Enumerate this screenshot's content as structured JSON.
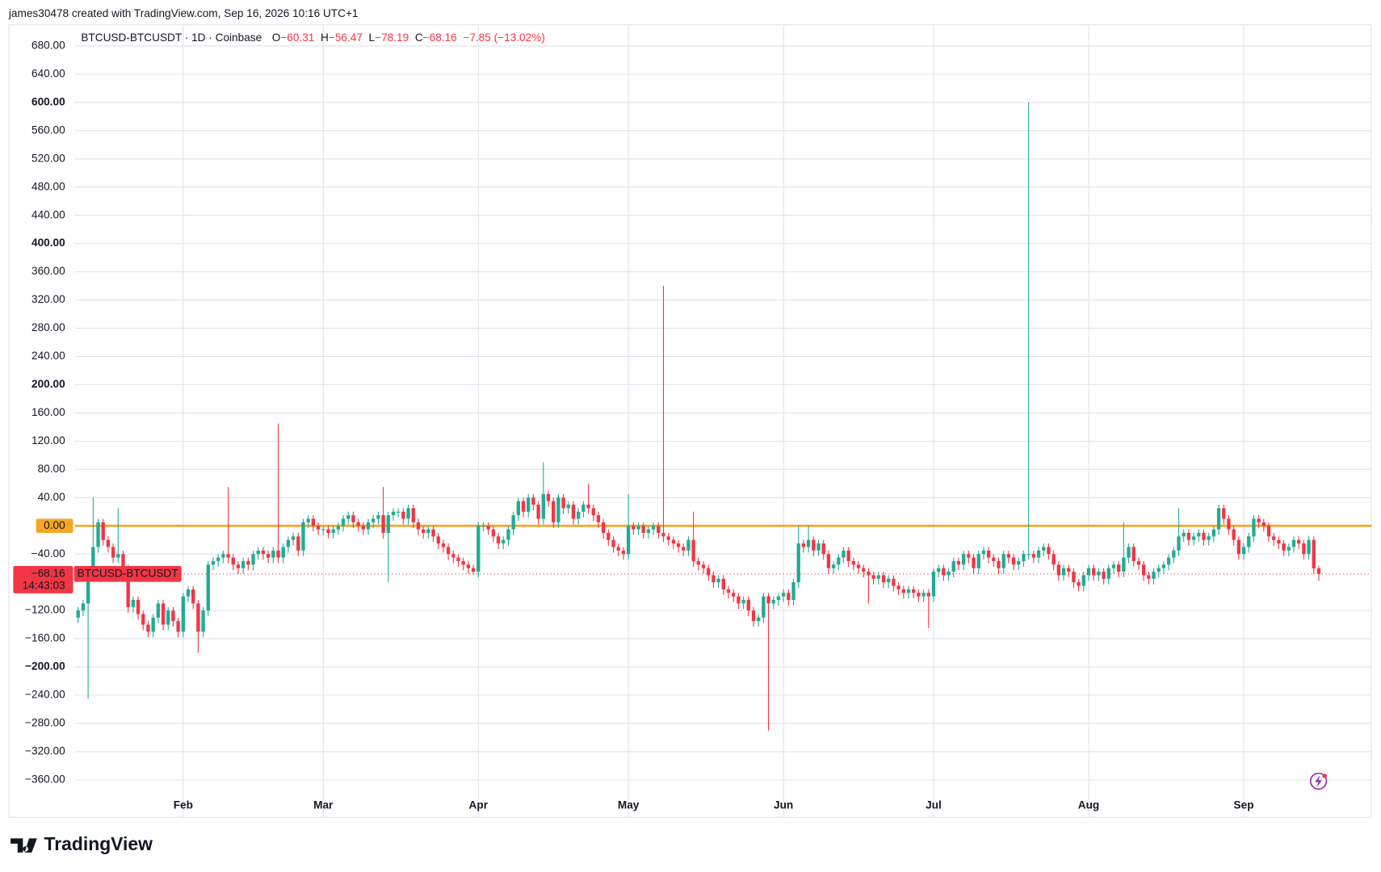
{
  "attribution": "james30478 created with TradingView.com, Sep 16, 2026 10:16 UTC+1",
  "brand": "TradingView",
  "chart_data": {
    "type": "candlestick",
    "title": "BTCUSD-BTCUSDT · 1D · Coinbase",
    "legend_items": [
      {
        "key": "O",
        "value": "−60.31"
      },
      {
        "key": "H",
        "value": "−56.47"
      },
      {
        "key": "L",
        "value": "−78.19"
      },
      {
        "key": "C",
        "value": "−68.16"
      }
    ],
    "change": "−7.85 (−13.02%)",
    "up_color": "#22ab94",
    "down_color": "#f23645",
    "grid": true,
    "xlim": [
      -0.65,
      258.5
    ],
    "xticks": [
      {
        "value": 21,
        "label": "Feb"
      },
      {
        "value": 49,
        "label": "Mar"
      },
      {
        "value": 80,
        "label": "Apr"
      },
      {
        "value": 110,
        "label": "May"
      },
      {
        "value": 141,
        "label": "Jun"
      },
      {
        "value": 171,
        "label": "Jul"
      },
      {
        "value": 202,
        "label": "Aug"
      },
      {
        "value": 233,
        "label": "Sep"
      }
    ],
    "ylim": [
      -413,
      710
    ],
    "yticks": [
      {
        "value": 680,
        "label": "680.00"
      },
      {
        "value": 640,
        "label": "640.00"
      },
      {
        "value": 600,
        "label": "600.00"
      },
      {
        "value": 560,
        "label": "560.00"
      },
      {
        "value": 520,
        "label": "520.00"
      },
      {
        "value": 480,
        "label": "480.00"
      },
      {
        "value": 440,
        "label": "440.00"
      },
      {
        "value": 400,
        "label": "400.00"
      },
      {
        "value": 360,
        "label": "360.00"
      },
      {
        "value": 320,
        "label": "320.00"
      },
      {
        "value": 280,
        "label": "280.00"
      },
      {
        "value": 240,
        "label": "240.00"
      },
      {
        "value": 200,
        "label": "200.00"
      },
      {
        "value": 160,
        "label": "160.00"
      },
      {
        "value": 120,
        "label": "120.00"
      },
      {
        "value": 80,
        "label": "80.00"
      },
      {
        "value": 40,
        "label": "40.00"
      },
      {
        "value": -40,
        "label": "−40.00"
      },
      {
        "value": -120,
        "label": "−120.00"
      },
      {
        "value": -160,
        "label": "−160.00"
      },
      {
        "value": -200,
        "label": "−200.00"
      },
      {
        "value": -240,
        "label": "−240.00"
      },
      {
        "value": -280,
        "label": "−280.00"
      },
      {
        "value": -320,
        "label": "−320.00"
      },
      {
        "value": -360,
        "label": "−360.00"
      }
    ],
    "hline": {
      "value": 0,
      "label": "0.00",
      "color": "#f5a623"
    },
    "last_price": {
      "value": -68.16,
      "label": "−68.16",
      "name": "BTCUSD-BTCUSDT",
      "countdown": "14:43:03"
    },
    "open": [
      -130,
      -120,
      -110,
      -70,
      -30,
      5,
      -20,
      -30,
      -45,
      -40,
      -60,
      -115,
      -105,
      -125,
      -140,
      -150,
      -130,
      -110,
      -140,
      -120,
      -135,
      -150,
      -100,
      -90,
      -110,
      -150,
      -120,
      -55,
      -50,
      -45,
      -40,
      -45,
      -55,
      -60,
      -50,
      -55,
      -40,
      -35,
      -40,
      -45,
      -35,
      -45,
      -30,
      -20,
      -15,
      -35,
      5,
      10,
      0,
      -5,
      -5,
      -10,
      -5,
      0,
      10,
      15,
      5,
      0,
      -5,
      5,
      10,
      15,
      -10,
      15,
      20,
      20,
      10,
      25,
      5,
      -5,
      -10,
      -5,
      -15,
      -25,
      -30,
      -40,
      -45,
      -50,
      -55,
      -60,
      -65,
      0,
      0,
      -5,
      -15,
      -25,
      -20,
      -5,
      15,
      35,
      20,
      40,
      30,
      10,
      45,
      35,
      5,
      40,
      25,
      30,
      10,
      20,
      30,
      25,
      15,
      5,
      -10,
      -20,
      -30,
      -35,
      -40,
      0,
      -5,
      0,
      -10,
      -5,
      0,
      -10,
      -15,
      -20,
      -25,
      -30,
      -35,
      -20,
      -50,
      -55,
      -60,
      -70,
      -80,
      -75,
      -90,
      -95,
      -100,
      -110,
      -105,
      -120,
      -135,
      -130,
      -100,
      -110,
      -105,
      -100,
      -95,
      -105,
      -80,
      -25,
      -30,
      -20,
      -35,
      -25,
      -40,
      -60,
      -55,
      -45,
      -35,
      -50,
      -55,
      -60,
      -65,
      -70,
      -75,
      -70,
      -80,
      -75,
      -85,
      -90,
      -95,
      -90,
      -95,
      -100,
      -95,
      -100,
      -65,
      -60,
      -70,
      -65,
      -50,
      -55,
      -40,
      -45,
      -60,
      -40,
      -35,
      -45,
      -50,
      -60,
      -40,
      -45,
      -55,
      -50,
      -40,
      -40,
      -45,
      -35,
      -30,
      -40,
      -55,
      -70,
      -60,
      -65,
      -80,
      -85,
      -70,
      -60,
      -70,
      -65,
      -75,
      -60,
      -55,
      -65,
      -45,
      -30,
      -50,
      -55,
      -70,
      -75,
      -65,
      -60,
      -55,
      -45,
      -35,
      -15,
      -10,
      -20,
      -15,
      -10,
      -20,
      -15,
      -5,
      25,
      10,
      -5,
      -20,
      -40,
      -30,
      -15,
      10,
      5,
      0,
      -15,
      -20,
      -25,
      -35,
      -30,
      -20,
      -25,
      -40,
      -20,
      -60.31
    ],
    "high": [
      -115,
      -105,
      -65,
      40,
      10,
      10,
      -15,
      -25,
      25,
      -35,
      -55,
      -100,
      -100,
      -120,
      -135,
      -125,
      -105,
      -105,
      -115,
      -115,
      -130,
      -95,
      -85,
      -85,
      -105,
      -115,
      -50,
      -45,
      -40,
      -35,
      55,
      -40,
      -50,
      -45,
      -45,
      -35,
      -30,
      -30,
      -35,
      -30,
      145,
      -25,
      -15,
      -10,
      -10,
      10,
      15,
      15,
      5,
      0,
      0,
      0,
      5,
      15,
      20,
      20,
      10,
      5,
      10,
      15,
      20,
      55,
      20,
      25,
      25,
      25,
      30,
      30,
      10,
      0,
      0,
      0,
      -10,
      -20,
      -25,
      -35,
      -40,
      -45,
      -50,
      -55,
      5,
      5,
      5,
      0,
      -10,
      -15,
      0,
      20,
      40,
      40,
      45,
      45,
      35,
      90,
      50,
      40,
      45,
      45,
      35,
      35,
      25,
      35,
      60,
      30,
      20,
      10,
      -5,
      -15,
      -25,
      -30,
      45,
      5,
      5,
      5,
      0,
      5,
      5,
      340,
      -10,
      -15,
      -20,
      -25,
      -15,
      20,
      -45,
      -50,
      -55,
      -65,
      -70,
      -70,
      -85,
      -90,
      -95,
      -100,
      -100,
      -115,
      -125,
      -95,
      -95,
      -100,
      -95,
      -90,
      -90,
      -75,
      0,
      -20,
      0,
      -15,
      -20,
      -20,
      -35,
      -50,
      -40,
      -30,
      -30,
      -45,
      -50,
      -55,
      -60,
      -65,
      -65,
      -65,
      -70,
      -70,
      -80,
      -85,
      -85,
      -85,
      -90,
      -90,
      -90,
      -60,
      -55,
      -55,
      -60,
      -45,
      -45,
      -35,
      -35,
      -40,
      -35,
      -30,
      -30,
      -40,
      -45,
      -35,
      -35,
      -40,
      -45,
      -35,
      600,
      -35,
      -30,
      -25,
      -25,
      -35,
      -50,
      -55,
      -55,
      -60,
      -75,
      -65,
      -55,
      -55,
      -60,
      -60,
      -55,
      -50,
      -50,
      5,
      -25,
      -25,
      -45,
      -50,
      -65,
      -60,
      -55,
      -50,
      -40,
      -30,
      25,
      -5,
      -5,
      -10,
      -5,
      -5,
      -10,
      0,
      30,
      30,
      15,
      0,
      -15,
      -25,
      -10,
      15,
      15,
      10,
      5,
      -10,
      -15,
      -20,
      -25,
      -15,
      -15,
      -20,
      -15,
      -15,
      -56.47
    ],
    "low": [
      -138,
      -128,
      -245,
      -78,
      -38,
      -28,
      -38,
      -53,
      -53,
      -68,
      -123,
      -123,
      -133,
      -148,
      -158,
      -158,
      -138,
      -148,
      -148,
      -143,
      -158,
      -158,
      -108,
      -118,
      -180,
      -158,
      -128,
      -63,
      -58,
      -53,
      -53,
      -63,
      -68,
      -68,
      -63,
      -63,
      -48,
      -48,
      -53,
      -53,
      -53,
      -53,
      -38,
      -28,
      -43,
      -43,
      -3,
      -8,
      -13,
      -13,
      -18,
      -18,
      -13,
      -8,
      2,
      -3,
      -8,
      -13,
      -13,
      -3,
      2,
      -18,
      -80,
      7,
      12,
      2,
      2,
      -3,
      -13,
      -18,
      -18,
      -23,
      -33,
      -38,
      -48,
      -53,
      -58,
      -63,
      -68,
      -70,
      -73,
      -8,
      -13,
      -23,
      -33,
      -33,
      -28,
      -13,
      7,
      12,
      12,
      22,
      2,
      2,
      27,
      -3,
      -3,
      17,
      17,
      2,
      2,
      12,
      17,
      7,
      -3,
      -18,
      -28,
      -38,
      -43,
      -48,
      -48,
      -13,
      -13,
      -18,
      -18,
      -13,
      -18,
      -23,
      -28,
      -33,
      -38,
      -43,
      -43,
      -58,
      -63,
      -68,
      -78,
      -88,
      -88,
      -98,
      -103,
      -108,
      -118,
      -118,
      -128,
      -143,
      -143,
      -138,
      -290,
      -118,
      -113,
      -108,
      -113,
      -113,
      -88,
      -38,
      -38,
      -43,
      -43,
      -48,
      -68,
      -68,
      -63,
      -53,
      -58,
      -63,
      -68,
      -73,
      -110,
      -83,
      -83,
      -88,
      -88,
      -93,
      -98,
      -103,
      -103,
      -103,
      -108,
      -108,
      -145,
      -108,
      -73,
      -78,
      -78,
      -73,
      -63,
      -63,
      -53,
      -68,
      -68,
      -48,
      -53,
      -58,
      -68,
      -68,
      -53,
      -63,
      -63,
      -58,
      -48,
      -53,
      -53,
      -43,
      -48,
      -63,
      -78,
      -78,
      -73,
      -88,
      -93,
      -93,
      -78,
      -78,
      -78,
      -83,
      -83,
      -68,
      -73,
      -73,
      -53,
      -58,
      -63,
      -78,
      -83,
      -83,
      -73,
      -68,
      -63,
      -53,
      -43,
      -23,
      -28,
      -28,
      -23,
      -28,
      -28,
      -23,
      -13,
      2,
      -13,
      -28,
      -48,
      -48,
      -38,
      -23,
      -3,
      -8,
      -23,
      -28,
      -33,
      -43,
      -43,
      -38,
      -33,
      -48,
      -48,
      -68,
      -78.19
    ],
    "close": [
      -120,
      -110,
      -70,
      -30,
      5,
      -20,
      -30,
      -45,
      -40,
      -60,
      -115,
      -105,
      -125,
      -140,
      -150,
      -130,
      -110,
      -140,
      -120,
      -135,
      -150,
      -100,
      -90,
      -110,
      -150,
      -120,
      -55,
      -50,
      -45,
      -40,
      -45,
      -55,
      -60,
      -50,
      -55,
      -40,
      -35,
      -40,
      -45,
      -35,
      -45,
      -30,
      -20,
      -15,
      -35,
      5,
      10,
      0,
      -5,
      -5,
      -10,
      -5,
      0,
      10,
      15,
      5,
      0,
      -5,
      5,
      10,
      15,
      -10,
      15,
      20,
      20,
      10,
      25,
      5,
      -5,
      -10,
      -5,
      -15,
      -25,
      -30,
      -40,
      -45,
      -50,
      -55,
      -60,
      -65,
      0,
      0,
      -5,
      -15,
      -25,
      -20,
      -5,
      15,
      35,
      20,
      40,
      30,
      10,
      45,
      35,
      5,
      40,
      25,
      30,
      10,
      20,
      30,
      25,
      15,
      5,
      -10,
      -20,
      -30,
      -35,
      -40,
      0,
      -5,
      0,
      -10,
      -5,
      0,
      -10,
      -15,
      -20,
      -25,
      -30,
      -35,
      -20,
      -50,
      -55,
      -60,
      -70,
      -80,
      -75,
      -90,
      -95,
      -100,
      -110,
      -105,
      -120,
      -135,
      -130,
      -100,
      -110,
      -105,
      -100,
      -95,
      -105,
      -80,
      -25,
      -30,
      -20,
      -35,
      -25,
      -40,
      -60,
      -55,
      -45,
      -35,
      -50,
      -55,
      -60,
      -65,
      -70,
      -75,
      -70,
      -80,
      -75,
      -85,
      -90,
      -95,
      -90,
      -95,
      -100,
      -95,
      -100,
      -65,
      -60,
      -70,
      -65,
      -50,
      -55,
      -40,
      -45,
      -60,
      -40,
      -35,
      -45,
      -50,
      -60,
      -40,
      -45,
      -55,
      -50,
      -40,
      -40,
      -45,
      -35,
      -30,
      -40,
      -55,
      -70,
      -60,
      -65,
      -80,
      -85,
      -70,
      -60,
      -70,
      -65,
      -75,
      -60,
      -55,
      -65,
      -45,
      -30,
      -50,
      -55,
      -70,
      -75,
      -65,
      -60,
      -55,
      -45,
      -35,
      -15,
      -10,
      -20,
      -15,
      -10,
      -20,
      -15,
      -5,
      25,
      10,
      -5,
      -20,
      -40,
      -30,
      -15,
      10,
      5,
      0,
      -15,
      -20,
      -25,
      -35,
      -30,
      -20,
      -25,
      -40,
      -20,
      -60.31,
      -68.16
    ]
  }
}
